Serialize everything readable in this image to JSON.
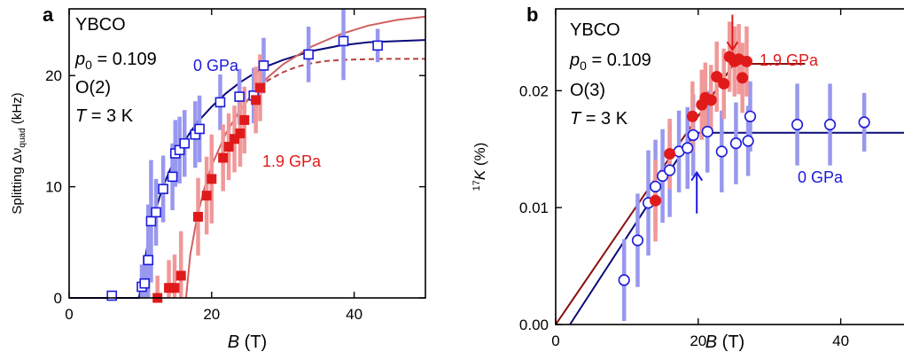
{
  "chart_data": [
    {
      "panel_label": "a",
      "type": "scatter",
      "xlabel": "B (T)",
      "ylabel": "Splitting Δν_quad (kHz)",
      "xlim": [
        0,
        50
      ],
      "ylim": [
        0,
        26
      ],
      "xticks": [
        0,
        20,
        40
      ],
      "yticks": [
        0,
        10,
        20
      ],
      "annotation_lines": [
        "YBCO",
        "p0 = 0.109",
        "O(2)",
        "T = 3 K"
      ],
      "series": [
        {
          "name": "0 GPa",
          "color": "#1a1adb",
          "marker": "open-square",
          "points": [
            {
              "x": 6.0,
              "y": 0.2,
              "err": 0.3
            },
            {
              "x": 10.2,
              "y": 1.0,
              "err": 2.0
            },
            {
              "x": 10.6,
              "y": 1.3,
              "err": 2.5
            },
            {
              "x": 11.1,
              "y": 3.4,
              "err": 5.0
            },
            {
              "x": 11.5,
              "y": 6.9,
              "err": 5.5
            },
            {
              "x": 12.2,
              "y": 7.7,
              "err": 3.0
            },
            {
              "x": 13.2,
              "y": 9.8,
              "err": 3.0
            },
            {
              "x": 14.5,
              "y": 10.9,
              "err": 3.0
            },
            {
              "x": 14.9,
              "y": 13.0,
              "err": 3.0
            },
            {
              "x": 15.5,
              "y": 13.3,
              "err": 3.0
            },
            {
              "x": 16.2,
              "y": 13.9,
              "err": 3.0
            },
            {
              "x": 17.7,
              "y": 14.7,
              "err": 3.0
            },
            {
              "x": 18.3,
              "y": 15.2,
              "err": 3.0
            },
            {
              "x": 21.2,
              "y": 17.6,
              "err": 2.5
            },
            {
              "x": 23.9,
              "y": 18.1,
              "err": 2.5
            },
            {
              "x": 25.9,
              "y": 18.2,
              "err": 2.5
            },
            {
              "x": 27.3,
              "y": 20.9,
              "err": 2.5
            },
            {
              "x": 33.6,
              "y": 21.9,
              "err": 2.5
            },
            {
              "x": 38.5,
              "y": 23.1,
              "err": 3.5
            },
            {
              "x": 43.3,
              "y": 22.7,
              "err": 1.5
            }
          ]
        },
        {
          "name": "1.9 GPa",
          "color": "#e01a1a",
          "marker": "filled-square",
          "points": [
            {
              "x": 12.4,
              "y": 0.0,
              "err": 2.0
            },
            {
              "x": 14.0,
              "y": 0.9,
              "err": 2.5
            },
            {
              "x": 14.8,
              "y": 0.9,
              "err": 3.0
            },
            {
              "x": 15.7,
              "y": 2.0,
              "err": 4.0
            },
            {
              "x": 18.1,
              "y": 7.3,
              "err": 3.5
            },
            {
              "x": 19.3,
              "y": 9.2,
              "err": 3.5
            },
            {
              "x": 20.0,
              "y": 10.7,
              "err": 4.0
            },
            {
              "x": 21.6,
              "y": 12.6,
              "err": 3.0
            },
            {
              "x": 22.4,
              "y": 13.6,
              "err": 3.0
            },
            {
              "x": 23.2,
              "y": 14.3,
              "err": 3.0
            },
            {
              "x": 24.0,
              "y": 14.8,
              "err": 3.0
            },
            {
              "x": 24.6,
              "y": 16.0,
              "err": 3.0
            },
            {
              "x": 26.2,
              "y": 17.8,
              "err": 3.0
            },
            {
              "x": 26.8,
              "y": 18.9,
              "err": 3.0
            }
          ]
        }
      ],
      "fits": [
        {
          "color": "#0a0a7a",
          "style": "solid",
          "x": [
            0,
            9.8,
            10.2,
            11,
            12,
            13,
            14,
            15,
            16,
            17,
            18,
            20,
            22,
            24,
            26,
            28,
            30,
            34,
            38,
            42,
            46,
            50
          ],
          "y": [
            0,
            0,
            1.5,
            4.8,
            7.6,
            9.7,
            11.3,
            12.7,
            13.9,
            14.9,
            15.8,
            17.2,
            18.4,
            19.4,
            20.2,
            20.9,
            21.4,
            22.2,
            22.7,
            23.0,
            23.1,
            23.2
          ]
        },
        {
          "color": "#d06060",
          "style": "solid",
          "x": [
            16.4,
            17,
            18,
            19,
            20,
            22,
            24,
            26,
            28,
            30,
            34,
            38,
            42,
            46,
            50
          ],
          "y": [
            0,
            3.9,
            7.4,
            9.9,
            11.9,
            14.8,
            16.9,
            18.6,
            19.9,
            21.0,
            22.6,
            23.7,
            24.5,
            25.0,
            25.3
          ]
        },
        {
          "color": "#b84040",
          "style": "dashed",
          "x": [
            26.8,
            28,
            30,
            32,
            34,
            36,
            38,
            40,
            44,
            50
          ],
          "y": [
            18.9,
            19.6,
            20.3,
            20.8,
            21.1,
            21.3,
            21.4,
            21.45,
            21.5,
            21.5
          ]
        }
      ],
      "labels": [
        {
          "text": "0 GPa",
          "color": "#1a1adb"
        },
        {
          "text": "1.9 GPa",
          "color": "#e01a1a"
        }
      ]
    },
    {
      "panel_label": "b",
      "type": "scatter",
      "xlabel": "B (T)",
      "ylabel": "17K (%)",
      "xlim": [
        0,
        50
      ],
      "ylim": [
        0,
        0.027
      ],
      "xticks": [
        0,
        20,
        40
      ],
      "yticks": [
        0.0,
        0.01,
        0.02
      ],
      "ytick_labels": [
        "0.00",
        "0.01",
        "0.02"
      ],
      "annotation_lines": [
        "YBCO",
        "p0 = 0.109",
        "O(3)",
        "T = 3 K"
      ],
      "series": [
        {
          "name": "0 GPa",
          "color": "#1a1adb",
          "marker": "open-circle",
          "points": [
            {
              "x": 9.6,
              "y": 0.0038,
              "err": 0.0035
            },
            {
              "x": 11.5,
              "y": 0.0072,
              "err": 0.004
            },
            {
              "x": 13.0,
              "y": 0.0104,
              "err": 0.0045
            },
            {
              "x": 14.0,
              "y": 0.0118,
              "err": 0.004
            },
            {
              "x": 15.0,
              "y": 0.0127,
              "err": 0.004
            },
            {
              "x": 16.0,
              "y": 0.0132,
              "err": 0.004
            },
            {
              "x": 17.3,
              "y": 0.0148,
              "err": 0.0035
            },
            {
              "x": 18.5,
              "y": 0.0151,
              "err": 0.0035
            },
            {
              "x": 19.3,
              "y": 0.0162,
              "err": 0.0035
            },
            {
              "x": 21.3,
              "y": 0.0165,
              "err": 0.0035
            },
            {
              "x": 23.3,
              "y": 0.0148,
              "err": 0.0035
            },
            {
              "x": 25.3,
              "y": 0.0155,
              "err": 0.0035
            },
            {
              "x": 27.0,
              "y": 0.0157,
              "err": 0.003
            },
            {
              "x": 27.3,
              "y": 0.0178,
              "err": 0.003
            },
            {
              "x": 33.9,
              "y": 0.0171,
              "err": 0.0035
            },
            {
              "x": 38.5,
              "y": 0.0171,
              "err": 0.0035
            },
            {
              "x": 43.3,
              "y": 0.0173,
              "err": 0.0025
            }
          ]
        },
        {
          "name": "1.9 GPa",
          "color": "#e01a1a",
          "marker": "filled-circle",
          "points": [
            {
              "x": 14.0,
              "y": 0.0106,
              "err": 0.0035
            },
            {
              "x": 16.0,
              "y": 0.0146,
              "err": 0.003
            },
            {
              "x": 19.2,
              "y": 0.0178,
              "err": 0.003
            },
            {
              "x": 20.5,
              "y": 0.0188,
              "err": 0.003
            },
            {
              "x": 21.0,
              "y": 0.0194,
              "err": 0.003
            },
            {
              "x": 21.8,
              "y": 0.0192,
              "err": 0.003
            },
            {
              "x": 22.6,
              "y": 0.0212,
              "err": 0.003
            },
            {
              "x": 23.6,
              "y": 0.0206,
              "err": 0.003
            },
            {
              "x": 24.4,
              "y": 0.0229,
              "err": 0.003
            },
            {
              "x": 25.1,
              "y": 0.0225,
              "err": 0.003
            },
            {
              "x": 25.7,
              "y": 0.0227,
              "err": 0.003
            },
            {
              "x": 26.2,
              "y": 0.0211,
              "err": 0.003
            },
            {
              "x": 26.8,
              "y": 0.0225,
              "err": 0.003
            }
          ]
        }
      ],
      "fits": [
        {
          "color": "#0a0a7a",
          "style": "solid",
          "x": [
            2,
            19.5,
            50
          ],
          "y": [
            0.0,
            0.0164,
            0.0164
          ]
        },
        {
          "color": "#8a1010",
          "style": "solid",
          "x": [
            0,
            25,
            35
          ],
          "y": [
            0.0,
            0.0223,
            0.0223
          ]
        }
      ],
      "arrows": [
        {
          "color": "#e01a1a",
          "x": 24.8,
          "y_from": 0.0265,
          "y_to": 0.0235
        },
        {
          "color": "#1a1adb",
          "x": 19.8,
          "y_from": 0.0095,
          "y_to": 0.013
        }
      ],
      "labels": [
        {
          "text": "1.9 GPa",
          "color": "#e01a1a"
        },
        {
          "text": "0 GPa",
          "color": "#1a1adb"
        }
      ]
    }
  ]
}
